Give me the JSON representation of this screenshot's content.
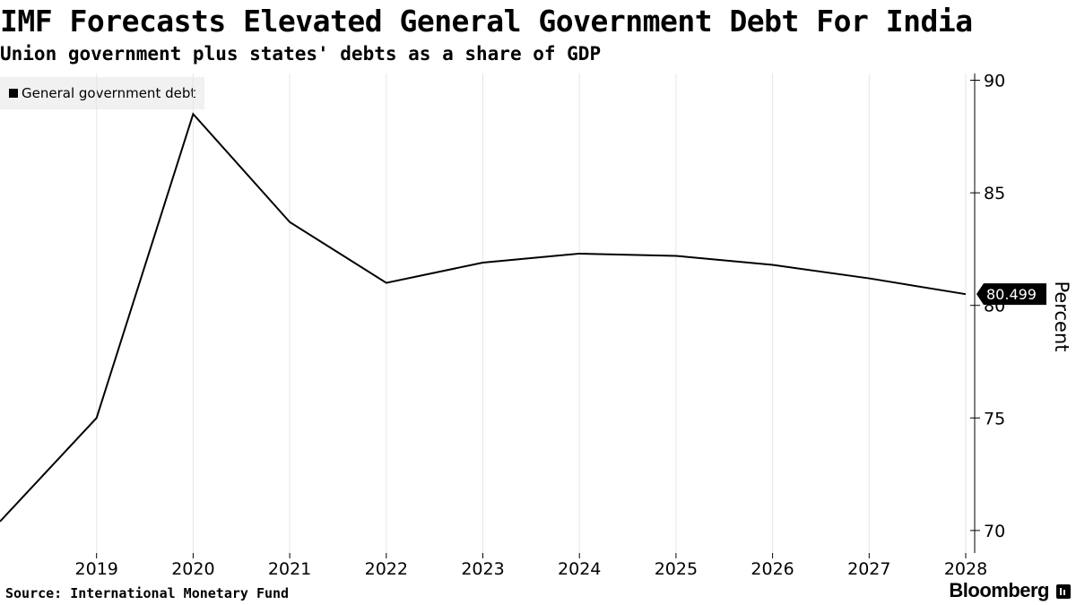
{
  "chart_data": {
    "type": "line",
    "title": "IMF Forecasts Elevated General Government Debt For India",
    "subtitle": "Union government plus states' debts as a share of GDP",
    "x": [
      2018,
      2019,
      2020,
      2021,
      2022,
      2023,
      2024,
      2025,
      2026,
      2027,
      2028
    ],
    "series": [
      {
        "name": "General government debt",
        "values": [
          70.4,
          75.0,
          88.5,
          83.7,
          81.0,
          81.9,
          82.3,
          82.2,
          81.8,
          81.2,
          80.499
        ]
      }
    ],
    "xticks": [
      "2019",
      "2020",
      "2021",
      "2022",
      "2023",
      "2024",
      "2025",
      "2026",
      "2027",
      "2028"
    ],
    "yticks": [
      "70",
      "75",
      "80",
      "85",
      "90"
    ],
    "ylim": [
      69,
      90.3
    ],
    "ylabel": "Percent",
    "xlabel": "",
    "grid": "vertical",
    "legend": "top-left",
    "last_value_label": "80.499",
    "colors": {
      "line": "#000000",
      "grid": "#e6e6e6",
      "axis": "#000000"
    }
  },
  "footer": {
    "source": "Source: International Monetary Fund",
    "brand": "Bloomberg"
  }
}
